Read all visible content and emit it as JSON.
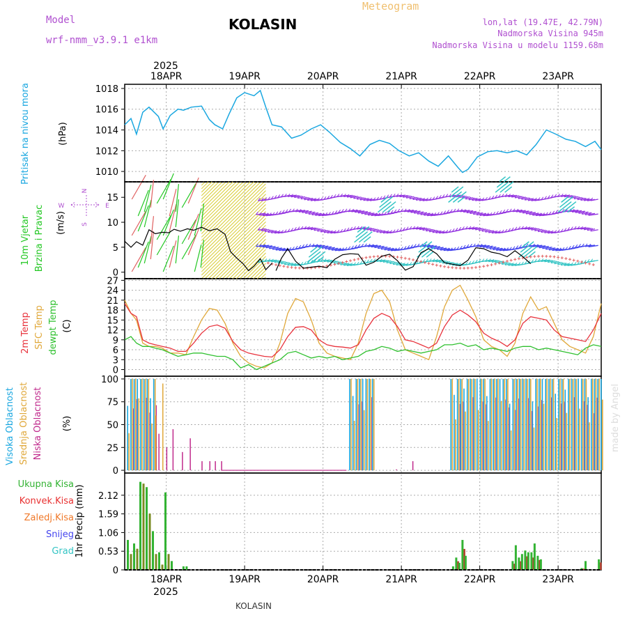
{
  "header": {
    "model_label": "Model",
    "model_name": "wrf-nmm_v3.9.1  e1km",
    "station": "KOLASIN",
    "title": "Meteogram",
    "lonlat": "lon,lat (19.47E, 42.79N)",
    "altitude": "Nadmorska Visina 945m",
    "model_altitude": "Nadmorska Visina u modelu 1159.68m",
    "footer_station": "KOLASIN",
    "watermark": "made by Angel"
  },
  "colors": {
    "pressure": "#1aa7e0",
    "wind": "#22c722",
    "temp2m": "#e8323c",
    "sfc": "#e0a83a",
    "dew": "#2ec02e",
    "high_cloud": "#1aa7e0",
    "mid_cloud": "#e0a83a",
    "low_cloud": "#c02a8c",
    "precip": "#33b333",
    "convective": "#e83030",
    "freezing": "#f07828",
    "snow": "#4444ee",
    "hail": "#33c4c4",
    "purple_text": "#b050d0",
    "title_orange": "#f0c070"
  },
  "chart_data": {
    "type": "line",
    "x_axis": {
      "year": "2025",
      "date_ticks": [
        "18APR",
        "19APR",
        "20APR",
        "21APR",
        "22APR",
        "23APR"
      ],
      "x_start_day": 17.47,
      "x_end_day": 23.55
    },
    "panels": [
      {
        "id": "pressure",
        "type": "line",
        "ylabel": "Pritisak na nivou mora",
        "unit": "(hPa)",
        "ylim": [
          1009,
          1018.4
        ],
        "yticks": [
          "1010",
          "1012",
          "1014",
          "1016",
          "1018"
        ],
        "series": [
          {
            "key": "pressure",
            "x": [
              17.47,
              17.55,
              17.62,
              17.7,
              17.78,
              17.9,
              17.96,
              18.05,
              18.15,
              18.22,
              18.32,
              18.45,
              18.55,
              18.62,
              18.72,
              18.8,
              18.9,
              19.0,
              19.12,
              19.2,
              19.27,
              19.35,
              19.47,
              19.6,
              19.72,
              19.85,
              19.97,
              20.08,
              20.22,
              20.35,
              20.47,
              20.6,
              20.72,
              20.85,
              20.97,
              21.1,
              21.22,
              21.35,
              21.47,
              21.6,
              21.72,
              21.78,
              21.85,
              21.97,
              22.1,
              22.22,
              22.35,
              22.47,
              22.6,
              22.72,
              22.85,
              22.97,
              23.1,
              23.22,
              23.35,
              23.47,
              23.55
            ],
            "values": [
              1014.5,
              1015.1,
              1013.6,
              1015.7,
              1016.2,
              1015.3,
              1014.1,
              1015.4,
              1016.0,
              1015.9,
              1016.2,
              1016.3,
              1015.0,
              1014.5,
              1014.1,
              1015.5,
              1017.1,
              1017.6,
              1017.3,
              1017.8,
              1016.2,
              1014.5,
              1014.3,
              1013.2,
              1013.5,
              1014.1,
              1014.5,
              1013.8,
              1012.8,
              1012.2,
              1011.5,
              1012.6,
              1013.0,
              1012.7,
              1012.0,
              1011.5,
              1011.8,
              1011.0,
              1010.5,
              1011.5,
              1010.4,
              1009.9,
              1010.2,
              1011.4,
              1011.9,
              1012.0,
              1011.8,
              1012.0,
              1011.6,
              1012.6,
              1014.0,
              1013.6,
              1013.1,
              1012.9,
              1012.4,
              1012.9,
              1012.1
            ]
          }
        ]
      },
      {
        "id": "wind",
        "type": "line",
        "ylabel": "10m Vjetar Brzina i Pravac",
        "unit": "(m/s)",
        "compass": {
          "n": "N",
          "e": "E",
          "w": "W",
          "s": "S"
        },
        "ylim": [
          -1.3,
          18.1
        ],
        "yticks": [
          "0",
          "5",
          "10",
          "15"
        ],
        "series": [
          {
            "key": "wind_speed",
            "name": "",
            "x": [
              17.47,
              17.55,
              17.62,
              17.7,
              17.78,
              17.86,
              17.95,
              18.03,
              18.1,
              18.18,
              18.27,
              18.35,
              18.45,
              18.55,
              18.65,
              18.75,
              18.82,
              18.9,
              18.98,
              19.05,
              19.12,
              19.2,
              19.27,
              19.35
            ],
            "values": [
              6.2,
              5.0,
              6.1,
              5.4,
              8.5,
              7.7,
              8.0,
              7.9,
              8.6,
              8.2,
              8.7,
              8.4,
              9.0,
              8.3,
              8.7,
              7.6,
              4.1,
              2.8,
              1.7,
              0.3,
              1.2,
              2.7,
              0.5,
              1.8
            ]
          },
          {
            "key": "gust_black",
            "name": "",
            "x": [
              19.4,
              19.47,
              19.55,
              19.65,
              19.75,
              19.85,
              19.95,
              20.05,
              20.15,
              20.25,
              20.35,
              20.45,
              20.55,
              20.65,
              20.75,
              20.85,
              20.95,
              21.05,
              21.15,
              21.25,
              21.35,
              21.45,
              21.55,
              21.65,
              21.75,
              21.85,
              21.95,
              22.05,
              22.15,
              22.25,
              22.35,
              22.45,
              22.55,
              22.65
            ],
            "values": [
              0.3,
              2.8,
              4.7,
              2.2,
              0.8,
              1.0,
              1.2,
              0.9,
              2.6,
              3.5,
              3.7,
              3.6,
              1.4,
              2.0,
              3.2,
              3.6,
              2.3,
              0.4,
              1.1,
              3.9,
              4.7,
              3.7,
              1.9,
              1.6,
              1.3,
              2.4,
              4.9,
              4.7,
              4.0,
              3.7,
              3.1,
              4.3,
              3.1,
              1.7
            ]
          }
        ],
        "arrow_rows": [
          2,
          5,
          8.5,
          12,
          15
        ]
      },
      {
        "id": "temperature",
        "type": "line",
        "ylabel": [
          "2m Temp",
          "SFC Temp",
          "dewpt Temp"
        ],
        "unit": "(C)",
        "ylim": [
          -2,
          27.5
        ],
        "yticks": [
          "0",
          "3",
          "6",
          "9",
          "12",
          "15",
          "18",
          "21",
          "24",
          "27"
        ],
        "series": [
          {
            "key": "temp2m",
            "name": "2m Temp",
            "x": [
              17.47,
              17.55,
              17.62,
              17.7,
              17.78,
              17.86,
              17.95,
              18.05,
              18.15,
              18.25,
              18.35,
              18.45,
              18.55,
              18.65,
              18.75,
              18.85,
              18.95,
              19.05,
              19.15,
              19.25,
              19.35,
              19.45,
              19.55,
              19.65,
              19.75,
              19.85,
              19.95,
              20.05,
              20.15,
              20.25,
              20.35,
              20.45,
              20.55,
              20.65,
              20.75,
              20.85,
              20.95,
              21.05,
              21.15,
              21.25,
              21.35,
              21.45,
              21.55,
              21.65,
              21.75,
              21.85,
              21.95,
              22.05,
              22.15,
              22.25,
              22.35,
              22.45,
              22.55,
              22.65,
              22.75,
              22.85,
              22.95,
              23.05,
              23.15,
              23.25,
              23.35,
              23.45,
              23.55
            ],
            "values": [
              20.0,
              17.0,
              16.0,
              9.0,
              8.0,
              7.5,
              7.0,
              6.5,
              5.5,
              5.5,
              8.0,
              11.0,
              13.0,
              13.5,
              12.5,
              8.5,
              6.0,
              5.0,
              4.5,
              4.0,
              3.8,
              6.0,
              10.0,
              12.8,
              13.0,
              12.0,
              9.0,
              7.5,
              7.0,
              6.8,
              6.5,
              7.5,
              12.0,
              15.5,
              17.0,
              16.0,
              13.0,
              9.0,
              8.5,
              7.5,
              6.5,
              8.0,
              13.0,
              16.5,
              18.0,
              16.5,
              14.5,
              11.0,
              9.5,
              8.5,
              7.0,
              9.0,
              14.0,
              16.0,
              15.5,
              15.0,
              12.0,
              10.0,
              9.5,
              9.0,
              8.5,
              12.0,
              17.0
            ]
          },
          {
            "key": "sfc",
            "name": "SFC Temp",
            "x": [
              17.47,
              17.55,
              17.62,
              17.7,
              17.78,
              17.86,
              17.95,
              18.05,
              18.15,
              18.25,
              18.35,
              18.45,
              18.55,
              18.65,
              18.75,
              18.85,
              18.95,
              19.05,
              19.15,
              19.25,
              19.35,
              19.45,
              19.55,
              19.65,
              19.75,
              19.85,
              19.95,
              20.05,
              20.15,
              20.25,
              20.35,
              20.45,
              20.55,
              20.65,
              20.75,
              20.85,
              20.95,
              21.05,
              21.15,
              21.25,
              21.35,
              21.45,
              21.55,
              21.65,
              21.75,
              21.85,
              21.95,
              22.05,
              22.15,
              22.25,
              22.35,
              22.45,
              22.55,
              22.65,
              22.75,
              22.85,
              22.95,
              23.05,
              23.15,
              23.25,
              23.35,
              23.45,
              23.55
            ],
            "values": [
              21.0,
              17.0,
              15.0,
              8.0,
              7.0,
              7.0,
              6.5,
              5.0,
              5.0,
              4.5,
              10.0,
              15.0,
              18.5,
              18.0,
              14.0,
              8.0,
              4.0,
              2.0,
              1.0,
              0.5,
              2.0,
              8.0,
              17.0,
              21.5,
              20.5,
              15.0,
              8.0,
              5.0,
              4.0,
              3.5,
              3.0,
              8.0,
              17.0,
              23.0,
              24.0,
              20.5,
              12.0,
              6.0,
              5.0,
              4.0,
              3.0,
              10.0,
              19.0,
              24.0,
              25.5,
              21.0,
              16.0,
              9.0,
              7.0,
              6.0,
              4.0,
              8.0,
              17.0,
              22.0,
              18.0,
              19.0,
              14.0,
              9.0,
              7.0,
              6.0,
              5.0,
              10.0,
              20.0
            ]
          },
          {
            "key": "dew",
            "name": "dewpt Temp",
            "x": [
              17.47,
              17.55,
              17.62,
              17.7,
              17.78,
              17.86,
              17.95,
              18.05,
              18.15,
              18.25,
              18.35,
              18.45,
              18.55,
              18.65,
              18.75,
              18.85,
              18.95,
              19.05,
              19.15,
              19.25,
              19.35,
              19.45,
              19.55,
              19.65,
              19.75,
              19.85,
              19.95,
              20.05,
              20.15,
              20.25,
              20.35,
              20.45,
              20.55,
              20.65,
              20.75,
              20.85,
              20.95,
              21.05,
              21.15,
              21.25,
              21.35,
              21.45,
              21.55,
              21.65,
              21.75,
              21.85,
              21.95,
              22.05,
              22.15,
              22.25,
              22.35,
              22.45,
              22.55,
              22.65,
              22.75,
              22.85,
              22.95,
              23.05,
              23.15,
              23.25,
              23.35,
              23.45,
              23.55
            ],
            "values": [
              9.0,
              10.0,
              8.0,
              7.0,
              7.0,
              6.5,
              6.0,
              5.0,
              4.0,
              4.5,
              5.0,
              5.0,
              4.5,
              4.0,
              4.0,
              3.0,
              0.5,
              1.5,
              0.0,
              1.0,
              2.0,
              3.0,
              5.0,
              5.5,
              4.5,
              3.5,
              4.0,
              3.5,
              4.0,
              3.0,
              3.5,
              4.0,
              5.5,
              6.0,
              7.0,
              6.5,
              5.5,
              6.0,
              5.5,
              5.0,
              5.5,
              6.0,
              7.5,
              7.5,
              8.0,
              7.0,
              7.5,
              6.0,
              6.5,
              6.0,
              5.5,
              6.5,
              7.0,
              7.0,
              6.0,
              6.5,
              6.0,
              5.5,
              5.0,
              4.5,
              6.5,
              7.5,
              7.0
            ]
          }
        ]
      },
      {
        "id": "cloud",
        "type": "bar",
        "ylabel": [
          "Visoka Oblacnost",
          "Srednja Oblacnost",
          "Niska Oblacnost"
        ],
        "unit": "(%)",
        "ylim": [
          -3,
          103
        ],
        "yticks": [
          "0",
          "25",
          "50",
          "75",
          "100"
        ],
        "note": "bars drawn for each hour; high/mid/low cover in percent"
      },
      {
        "id": "precip",
        "type": "bar",
        "ylabel": "1hr Precip (mm)",
        "ylim": [
          0,
          2.75
        ],
        "yticks": [
          "0",
          "0.53",
          "1.06",
          "1.59",
          "2.12"
        ],
        "legend": [
          "Ukupna Kisa",
          "Konvek.Kisa",
          "Zaledj.Kisa",
          "Snijeg",
          "Grad"
        ],
        "bars": [
          {
            "x": 17.51,
            "v": 0.85
          },
          {
            "x": 17.55,
            "v": 0.45
          },
          {
            "x": 17.59,
            "v": 0.75
          },
          {
            "x": 17.63,
            "v": 0.6
          },
          {
            "x": 17.67,
            "v": 2.5
          },
          {
            "x": 17.71,
            "v": 2.45
          },
          {
            "x": 17.75,
            "v": 2.35
          },
          {
            "x": 17.79,
            "v": 1.6
          },
          {
            "x": 17.83,
            "v": 1.1
          },
          {
            "x": 17.87,
            "v": 0.45
          },
          {
            "x": 17.91,
            "v": 0.5
          },
          {
            "x": 17.95,
            "v": 0.15
          },
          {
            "x": 17.99,
            "v": 2.2
          },
          {
            "x": 18.03,
            "v": 0.45
          },
          {
            "x": 18.07,
            "v": 0.25
          },
          {
            "x": 18.22,
            "v": 0.1
          },
          {
            "x": 18.26,
            "v": 0.1
          },
          {
            "x": 21.66,
            "v": 0.1
          },
          {
            "x": 21.7,
            "v": 0.35
          },
          {
            "x": 21.74,
            "v": 0.2
          },
          {
            "x": 21.78,
            "v": 0.85
          },
          {
            "x": 21.82,
            "v": 0.4
          },
          {
            "x": 22.42,
            "v": 0.25
          },
          {
            "x": 22.46,
            "v": 0.7
          },
          {
            "x": 22.5,
            "v": 0.35
          },
          {
            "x": 22.54,
            "v": 0.45
          },
          {
            "x": 22.58,
            "v": 0.55
          },
          {
            "x": 22.62,
            "v": 0.5
          },
          {
            "x": 22.66,
            "v": 0.5
          },
          {
            "x": 22.7,
            "v": 0.75
          },
          {
            "x": 22.74,
            "v": 0.4
          },
          {
            "x": 22.78,
            "v": 0.3
          },
          {
            "x": 23.3,
            "v": 0.05
          },
          {
            "x": 23.35,
            "v": 0.25
          },
          {
            "x": 23.52,
            "v": 0.3
          }
        ]
      }
    ]
  }
}
